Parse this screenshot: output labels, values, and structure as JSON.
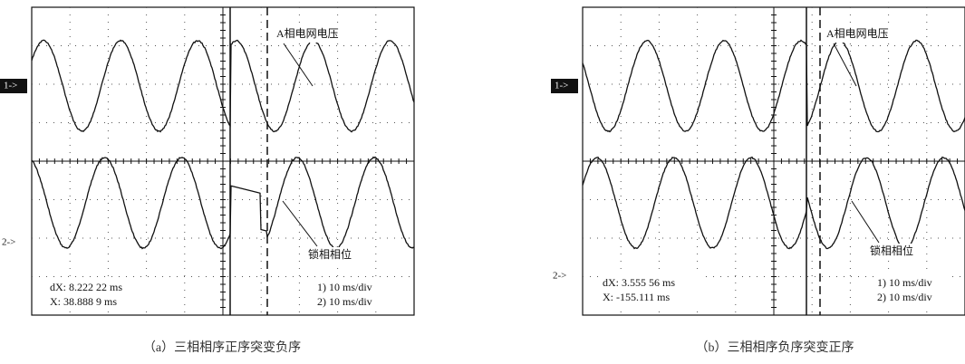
{
  "panels": [
    {
      "channel_1": "1->",
      "channel_2": "2->",
      "label_top": "A相电网电压",
      "label_bottom": "锁相相位",
      "cursor_dx": "dX: 8.222 22 ms",
      "cursor_x": "X: 38.888 9 ms",
      "scale_1": "1) 10 ms/div",
      "scale_2": "2) 10 ms/div",
      "caption": "（a）三相相序正序突变负序"
    },
    {
      "channel_1": "1->",
      "channel_2": "2->",
      "label_top": "A相电网电压",
      "label_bottom": "锁相相位",
      "cursor_dx": "dX: 3.555 56 ms",
      "cursor_x": "X: -155.111 ms",
      "scale_1": "1) 10 ms/div",
      "scale_2": "2) 10 ms/div",
      "caption": "（b）三相相序负序突变正序"
    }
  ]
}
